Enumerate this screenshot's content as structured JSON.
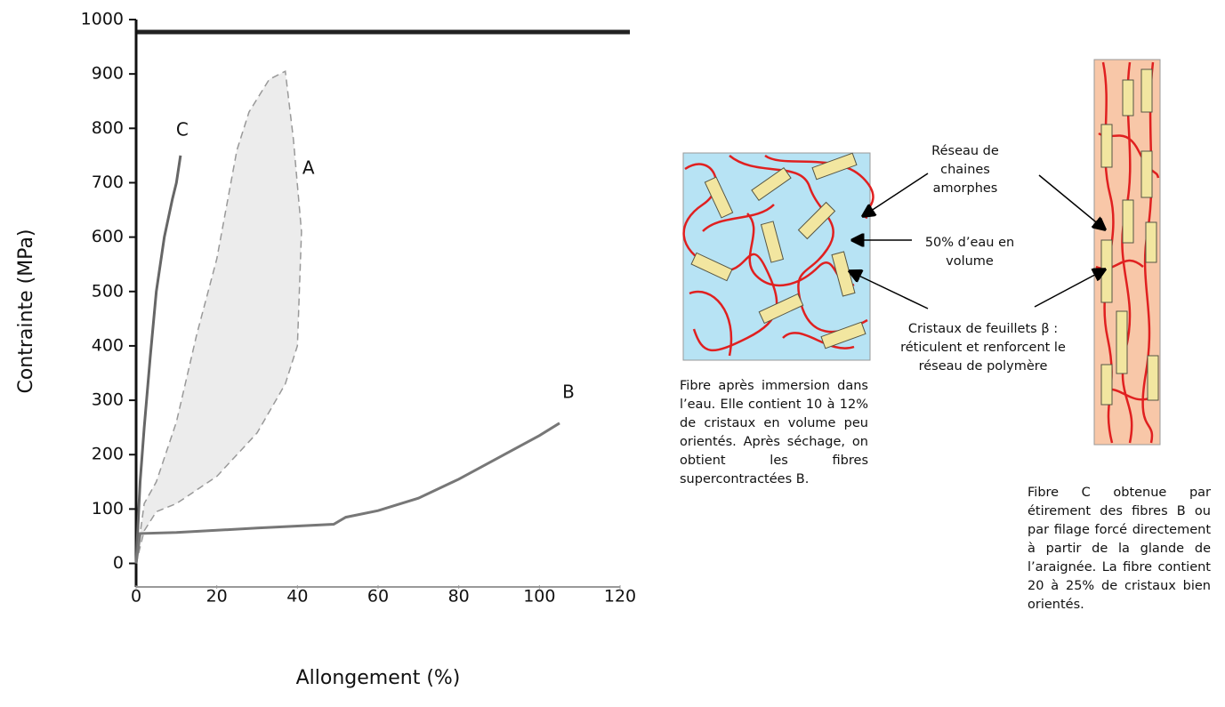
{
  "chart_data": {
    "type": "line",
    "xlabel": "Allongement (%)",
    "ylabel": "Contrainte (MPa)",
    "xlim": [
      0,
      120
    ],
    "xticks": [
      0,
      20,
      40,
      60,
      80,
      100,
      120
    ],
    "ylim": [
      -40,
      1000
    ],
    "yticks": [
      0,
      100,
      200,
      300,
      400,
      500,
      600,
      700,
      800,
      900,
      1000
    ],
    "series": [
      {
        "name": "C",
        "color": "#666666",
        "x": [
          0,
          1,
          2,
          3.5,
          5,
          7,
          9,
          10,
          11
        ],
        "values": [
          0,
          150,
          250,
          380,
          500,
          600,
          670,
          700,
          750
        ]
      },
      {
        "name": "A",
        "color": "#999999",
        "x": [
          0,
          2,
          5,
          10,
          15,
          20,
          25,
          28,
          33,
          37,
          39,
          41,
          40,
          37,
          30,
          20,
          10,
          5,
          2,
          0
        ],
        "values": [
          0,
          110,
          150,
          260,
          420,
          560,
          760,
          830,
          890,
          905,
          780,
          610,
          400,
          330,
          240,
          160,
          110,
          95,
          60,
          0
        ]
      },
      {
        "name": "B",
        "color": "#777777",
        "x": [
          0,
          1,
          10,
          30,
          49,
          52,
          60,
          70,
          80,
          90,
          100,
          105
        ],
        "values": [
          0,
          55,
          57,
          65,
          72,
          85,
          97,
          120,
          155,
          195,
          235,
          258
        ]
      }
    ]
  },
  "labels": {
    "network": "Réseau de chaines amorphes",
    "water": "50% d’eau en volume",
    "crystals": "Cristaux de feuillets β : réticulent et renforcent le réseau de polymère"
  },
  "captions": {
    "left": "Fibre après immersion dans l’eau. Elle contient 10 à 12% de cristaux en volume peu orientés. Après séchage, on obtient les fibres supercontractées B.",
    "right": "Fibre C obtenue par étirement des fibres B ou par filage forcé directement à partir de la glande de l’araignée. La fibre contient 20 à 25% de cristaux bien orientés."
  }
}
